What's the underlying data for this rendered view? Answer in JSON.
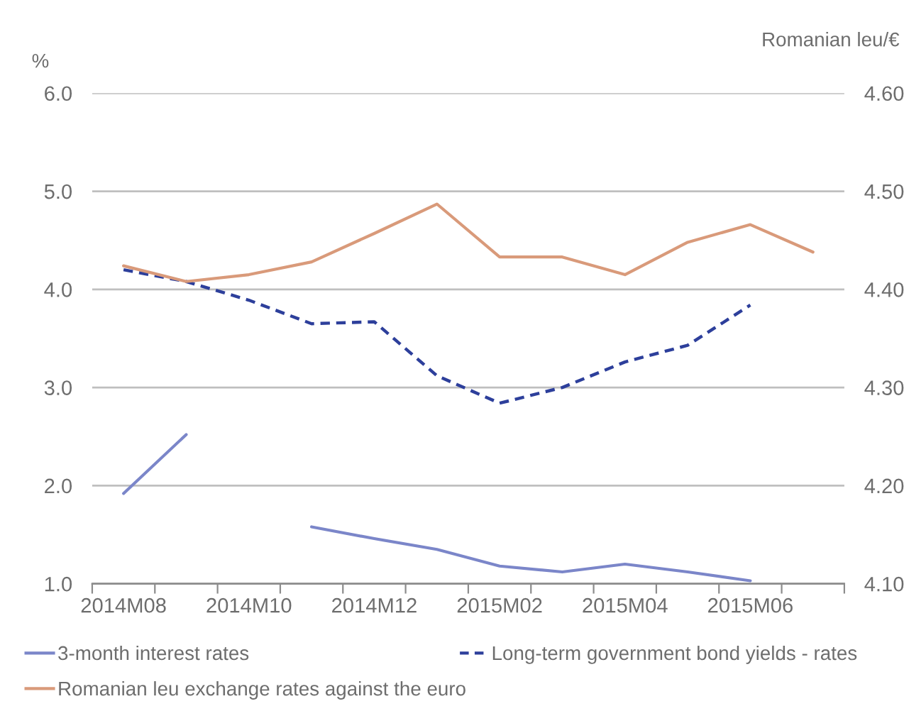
{
  "chart_data": {
    "type": "line",
    "ylabel": "%",
    "y2label": "Romanian leu/€",
    "categories": [
      "2014M08",
      null,
      "2014M10",
      null,
      "2014M12",
      null,
      "2015M02",
      null,
      "2015M04",
      null,
      "2015M06",
      null
    ],
    "series": [
      {
        "name": "3-month interest rates",
        "color": "#7b86c9",
        "line_style": "solid",
        "values": [
          1.92,
          2.52,
          null,
          1.58,
          1.46,
          1.35,
          1.18,
          1.12,
          1.2,
          1.12,
          1.03,
          null
        ]
      },
      {
        "name": "Long-term government bond yields - rates",
        "color": "#2d3f9b",
        "line_style": "dashed",
        "values": [
          4.2,
          4.08,
          3.89,
          3.65,
          3.67,
          3.12,
          2.84,
          3.0,
          3.26,
          3.43,
          3.84,
          null
        ]
      },
      {
        "name": "Romanian leu exchange rates against the euro",
        "color": "#d99a7a",
        "line_style": "solid",
        "axis": "y2",
        "values": [
          4.424,
          4.408,
          4.415,
          4.428,
          4.457,
          4.487,
          4.433,
          4.433,
          4.415,
          4.448,
          4.466,
          4.438
        ]
      }
    ],
    "ylim": [
      1.0,
      6.0
    ],
    "yticks": [
      {
        "value": 1.0,
        "label": "1.0"
      },
      {
        "value": 2.0,
        "label": "2.0"
      },
      {
        "value": 3.0,
        "label": "3.0"
      },
      {
        "value": 4.0,
        "label": "4.0"
      },
      {
        "value": 5.0,
        "label": "5.0"
      },
      {
        "value": 6.0,
        "label": "6.0"
      }
    ],
    "y2lim": [
      4.1,
      4.6
    ],
    "y2ticks": [
      {
        "value": 4.1,
        "label": "4.10"
      },
      {
        "value": 4.2,
        "label": "4.20"
      },
      {
        "value": 4.3,
        "label": "4.30"
      },
      {
        "value": 4.4,
        "label": "4.40"
      },
      {
        "value": 4.5,
        "label": "4.50"
      },
      {
        "value": 4.6,
        "label": "4.60"
      }
    ],
    "grid": "y",
    "legend": "bottom",
    "marker": "none"
  }
}
